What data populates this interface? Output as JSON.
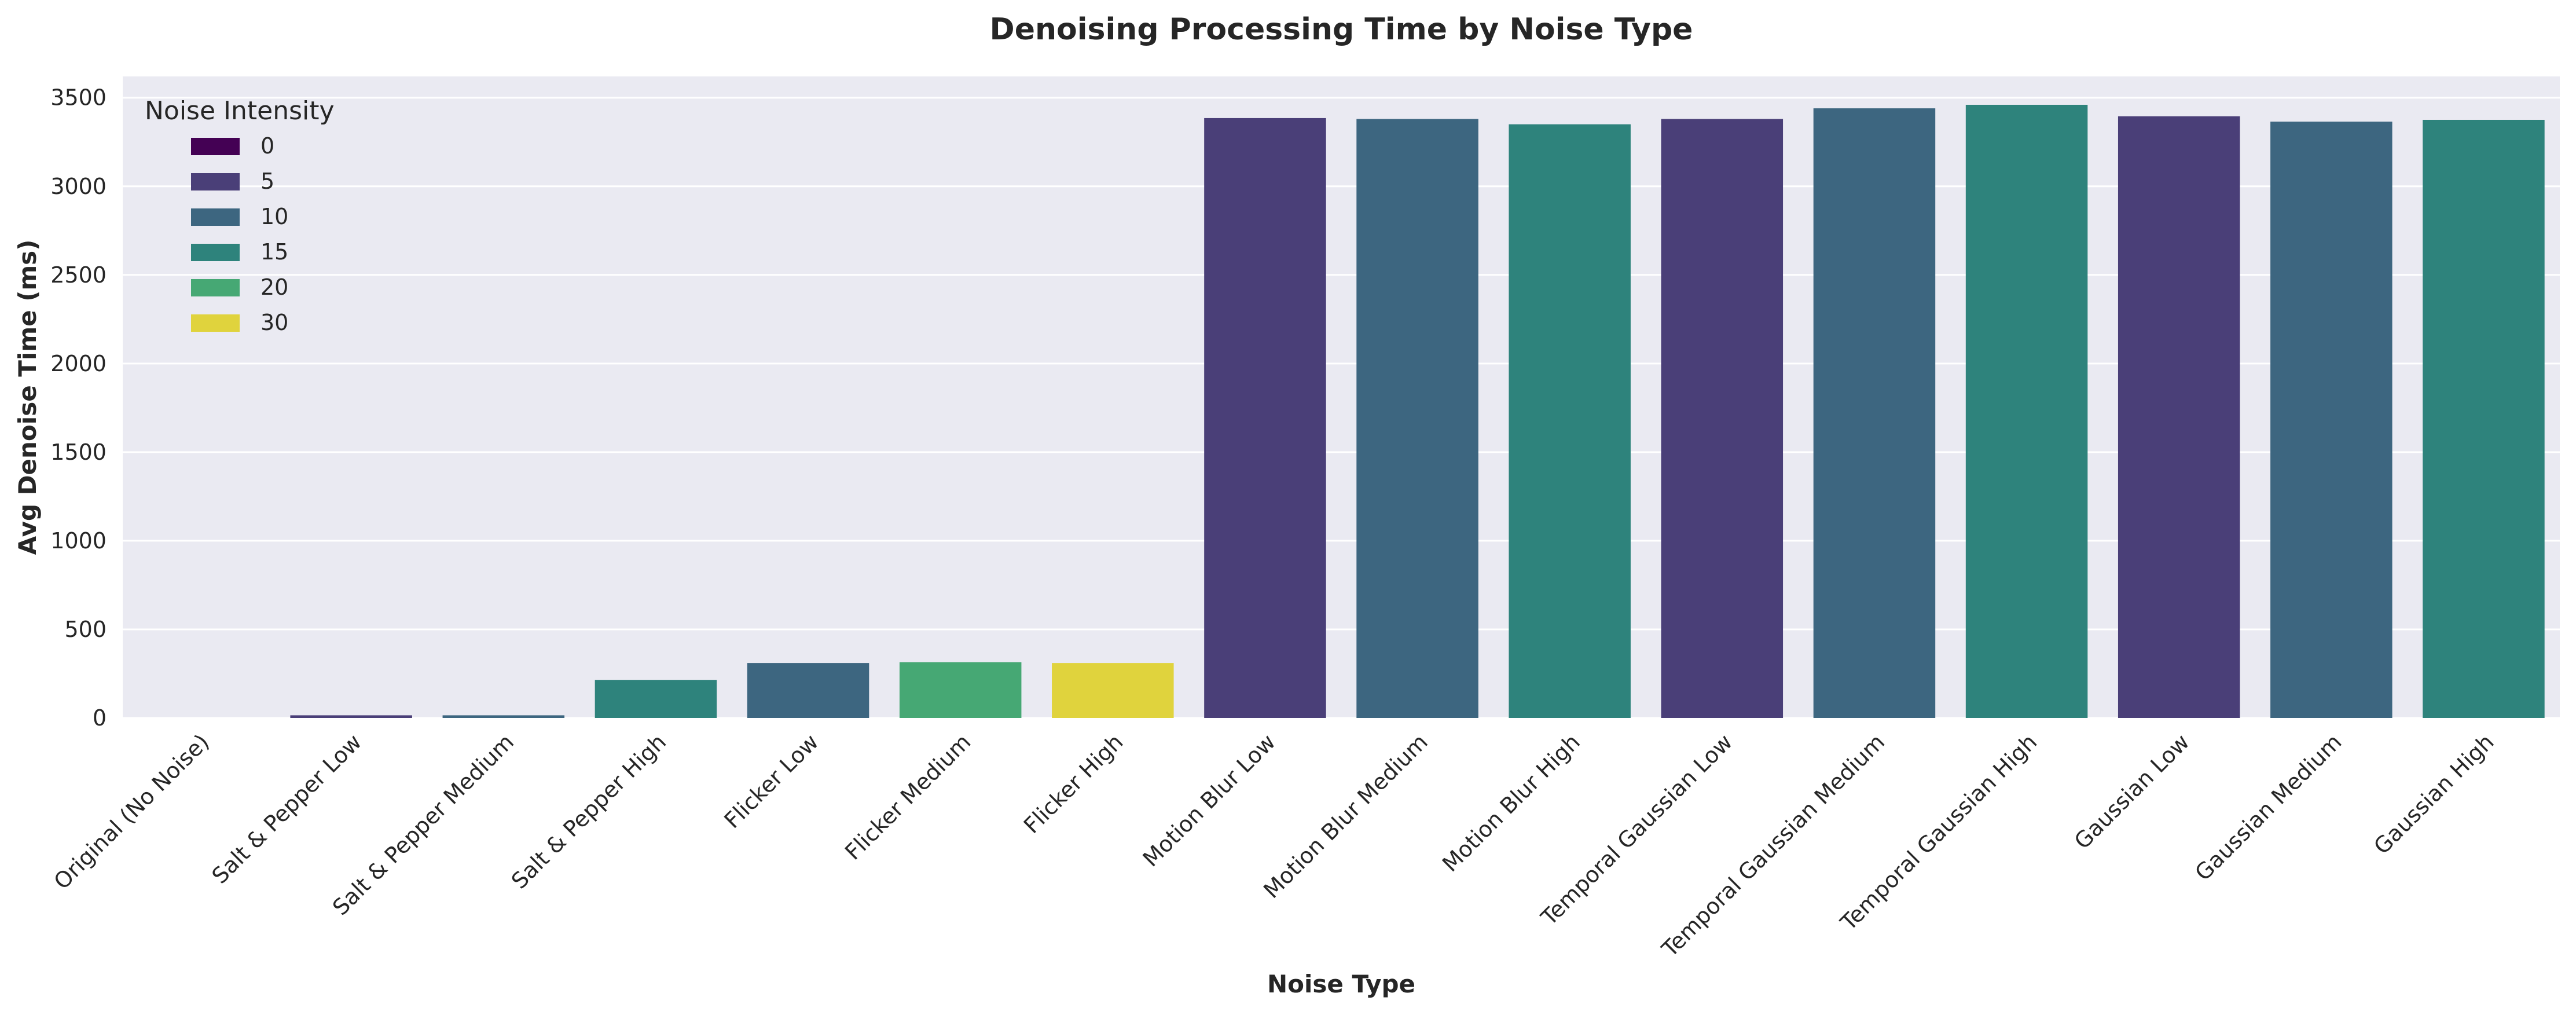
{
  "chart_data": {
    "type": "bar",
    "title": "Denoising Processing Time by Noise Type",
    "xlabel": "Noise Type",
    "ylabel": "Avg Denoise Time (ms)",
    "ylim": [
      0,
      3620
    ],
    "yticks": [
      0,
      500,
      1000,
      1500,
      2000,
      2500,
      3000,
      3500
    ],
    "grid": true,
    "background_color": "#EAEAF2",
    "categories": [
      "Original (No Noise)",
      "Salt & Pepper Low",
      "Salt & Pepper Medium",
      "Salt & Pepper High",
      "Flicker Low",
      "Flicker Medium",
      "Flicker High",
      "Motion Blur Low",
      "Motion Blur Medium",
      "Motion Blur High",
      "Temporal Gaussian Low",
      "Temporal Gaussian Medium",
      "Temporal Gaussian High",
      "Gaussian Low",
      "Gaussian Medium",
      "Gaussian High"
    ],
    "values": [
      0,
      15,
      15,
      215,
      310,
      315,
      310,
      3385,
      3380,
      3350,
      3380,
      3440,
      3460,
      3395,
      3365,
      3375
    ],
    "intensity": [
      0,
      5,
      10,
      15,
      10,
      20,
      30,
      5,
      10,
      15,
      5,
      10,
      15,
      5,
      10,
      15
    ],
    "legend": {
      "title": "Noise Intensity",
      "placement": "top-left",
      "entries": [
        {
          "label": "0",
          "color": "#440154"
        },
        {
          "label": "5",
          "color": "#4A3F78"
        },
        {
          "label": "10",
          "color": "#3D6680"
        },
        {
          "label": "15",
          "color": "#2E837C"
        },
        {
          "label": "20",
          "color": "#46A874"
        },
        {
          "label": "30",
          "color": "#E0D33D"
        }
      ]
    }
  }
}
